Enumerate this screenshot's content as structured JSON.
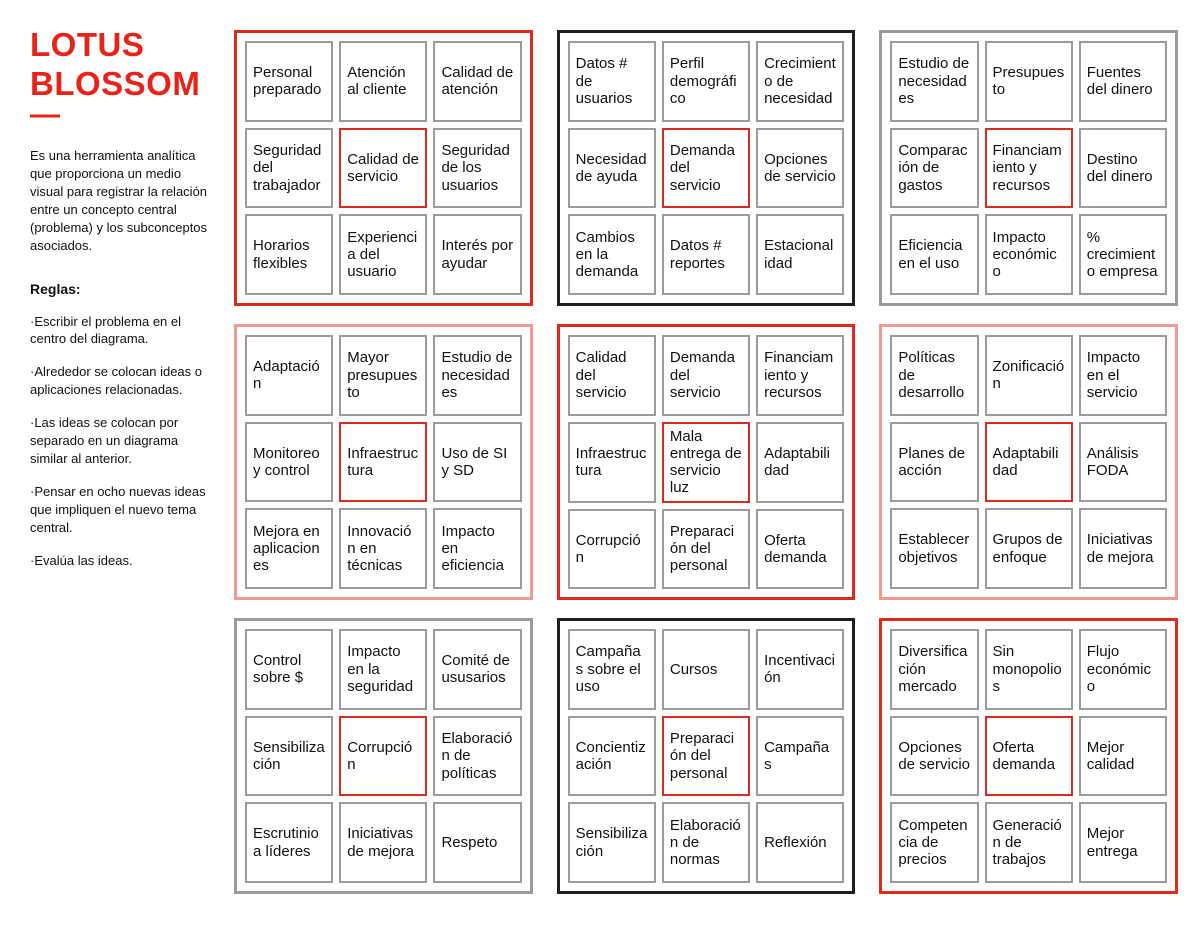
{
  "sidebar": {
    "title_line1": "LOTUS",
    "title_line2": "BLOSSOM",
    "dash": "—",
    "description": "Es una herramienta analítica que proporciona un medio visual para registrar la relación entre un concepto central (problema) y los subconceptos asociados.",
    "rules_heading": "Reglas:",
    "rules": [
      "·Escribir el problema en el centro del diagrama.",
      "·Alrededor se colocan ideas o aplicaciones relacionadas.",
      "·Las ideas se colocan por separado en un diagrama similar al anterior.",
      "·Pensar en ocho nuevas ideas que impliquen el nuevo tema central.",
      "·Evalúa las ideas."
    ]
  },
  "colors": {
    "accent_red": "#e8231a",
    "border_red": "#dd2a1e",
    "border_black": "#1f1f1f",
    "border_gray": "#9b9b9b",
    "border_pink": "#f09a94",
    "cell_border": "#9b9b9b",
    "center_cell_border": "#d92b1f"
  },
  "blocks": [
    {
      "position": "top-left",
      "border": "red",
      "cells": [
        "Personal preparado",
        "Atención al cliente",
        "Calidad de atención",
        "Seguridad del trabajador",
        "Calidad de servicio",
        "Seguridad de los usuarios",
        "Horarios flexibles",
        "Experiencia del usuario",
        "Interés por ayudar"
      ]
    },
    {
      "position": "top-center",
      "border": "black",
      "cells": [
        "Datos # de usuarios",
        "Perfil demográfico",
        "Crecimiento de necesidad",
        "Necesidad de ayuda",
        "Demanda del servicio",
        "Opciones de servicio",
        "Cambios en la demanda",
        "Datos # reportes",
        "Estacionalidad"
      ]
    },
    {
      "position": "top-right",
      "border": "gray",
      "cells": [
        "Estudio de necesidades",
        "Presupuesto",
        "Fuentes del dinero",
        "Comparación de gastos",
        "Financiamiento y recursos",
        "Destino del dinero",
        "Eficiencia en el uso",
        "Impacto económico",
        "% crecimiento empresa"
      ]
    },
    {
      "position": "middle-left",
      "border": "pink",
      "cells": [
        "Adaptación",
        "Mayor presupuesto",
        "Estudio de necesidades",
        "Monitoreo y control",
        "Infraestructura",
        "Uso de SI y SD",
        "Mejora en aplicaciones",
        "Innovación en técnicas",
        "Impacto en eficiencia"
      ]
    },
    {
      "position": "middle-center",
      "border": "red",
      "cells": [
        "Calidad del servicio",
        "Demanda del servicio",
        "Financiamiento y recursos",
        "Infraestructura",
        "Mala entrega de servicio luz",
        "Adaptabilidad",
        "Corrupción",
        "Preparación del personal",
        "Oferta demanda"
      ]
    },
    {
      "position": "middle-right",
      "border": "pink",
      "cells": [
        "Políticas de desarrollo",
        "Zonificación",
        "Impacto en el servicio",
        "Planes de acción",
        "Adaptabilidad",
        "Análisis FODA",
        "Establecer objetivos",
        "Grupos de enfoque",
        "Iniciativas de mejora"
      ]
    },
    {
      "position": "bottom-left",
      "border": "gray",
      "cells": [
        "Control sobre $",
        "Impacto en la seguridad",
        "Comité de ususarios",
        "Sensibilización",
        "Corrupción",
        "Elaboración de políticas",
        "Escrutinio a líderes",
        "Iniciativas de mejora",
        "Respeto"
      ]
    },
    {
      "position": "bottom-center",
      "border": "black",
      "cells": [
        "Campañas sobre el uso",
        "Cursos",
        "Incentivación",
        "Concientización",
        "Preparación del personal",
        "Campañas",
        "Sensibilización",
        "Elaboración de normas",
        "Reflexión"
      ]
    },
    {
      "position": "bottom-right",
      "border": "red",
      "cells": [
        "Diversificación mercado",
        "Sin monopolios",
        "Flujo económico",
        "Opciones de servicio",
        "Oferta demanda",
        "Mejor calidad",
        "Competencia de precios",
        "Generación de trabajos",
        "Mejor entrega"
      ]
    }
  ]
}
